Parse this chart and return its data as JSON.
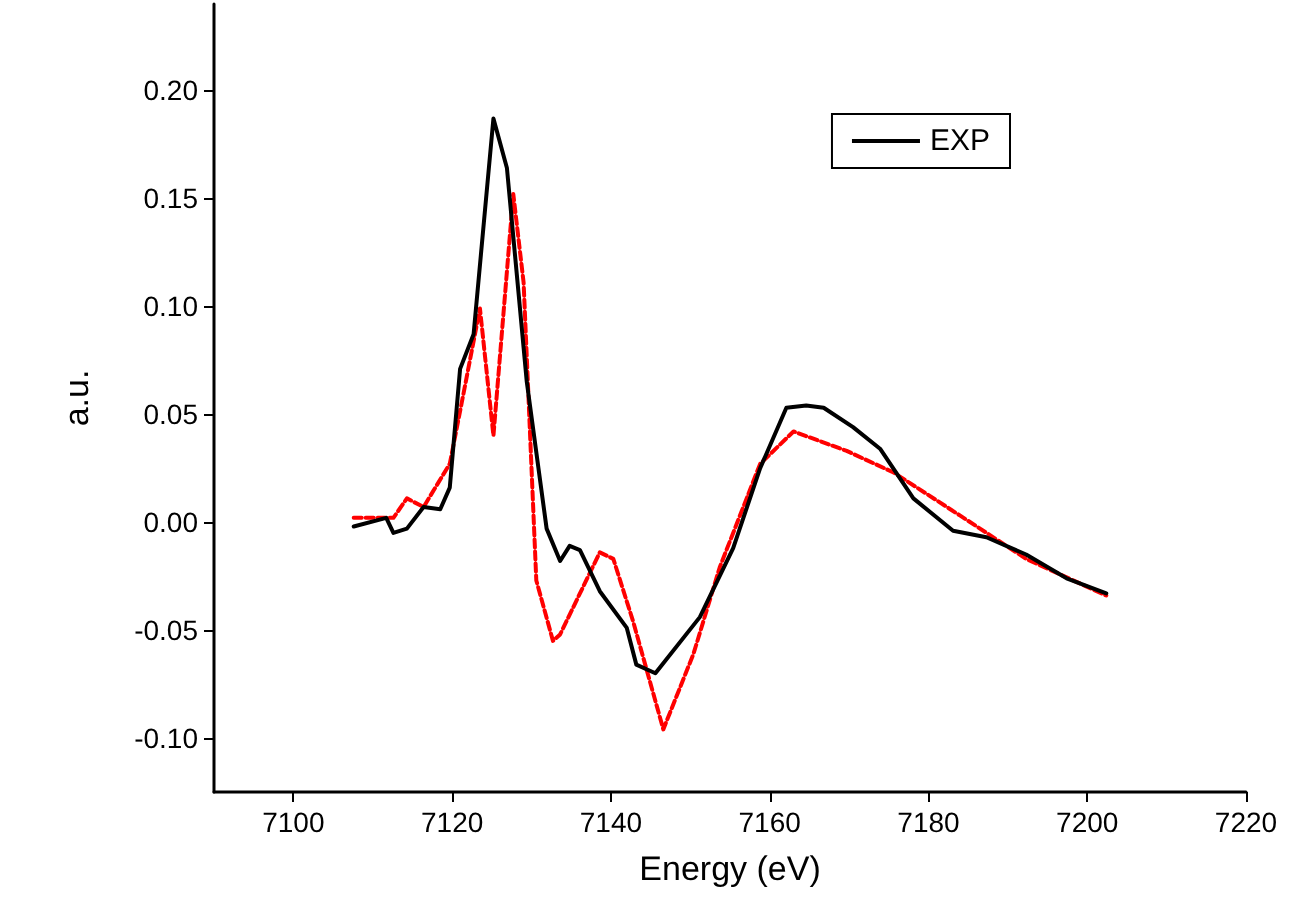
{
  "chart_data": {
    "type": "line",
    "xlabel": "Energy (eV)",
    "ylabel": "a.u.",
    "xlim": [
      7090,
      7220
    ],
    "xticks": [
      7100,
      7120,
      7140,
      7160,
      7180,
      7200,
      7220
    ],
    "ylim": [
      -0.125,
      0.24
    ],
    "yticks": [
      {
        "value": -0.1,
        "label": "-0.10"
      },
      {
        "value": -0.05,
        "label": "-0.05"
      },
      {
        "value": 0,
        "label": "0.00"
      },
      {
        "value": 0.05,
        "label": "0.05"
      },
      {
        "value": 0.1,
        "label": "0.10"
      },
      {
        "value": 0.15,
        "label": "0.15"
      },
      {
        "value": 0.2,
        "label": "0.20"
      }
    ],
    "grid": false,
    "legend": "top right",
    "marker": "none",
    "series": [
      {
        "name": "EXP",
        "color": "#000000",
        "line_style": "solid",
        "x": [
          7107.6,
          7111.7,
          7112.6,
          7114.3,
          7116.4,
          7118.5,
          7119.7,
          7121,
          7122.7,
          7125.2,
          7126.9,
          7129.4,
          7131.9,
          7133.6,
          7134.8,
          7136.1,
          7138.6,
          7142,
          7143.2,
          7145.6,
          7151.2,
          7155.4,
          7158.8,
          7162.1,
          7164.6,
          7166.8,
          7170.5,
          7173.9,
          7178.1,
          7183.1,
          7187.3,
          7192.3,
          7197.4,
          7202.4
        ],
        "values": [
          -0.002,
          0.002,
          -0.005,
          -0.003,
          0.007,
          0.006,
          0.016,
          0.071,
          0.087,
          0.187,
          0.164,
          0.065,
          -0.003,
          -0.018,
          -0.011,
          -0.013,
          -0.032,
          -0.049,
          -0.066,
          -0.07,
          -0.044,
          -0.012,
          0.025,
          0.053,
          0.054,
          0.053,
          0.044,
          0.034,
          0.011,
          -0.004,
          -0.007,
          -0.015,
          -0.026,
          -0.033
        ]
      },
      {
        "color": "#ff0000",
        "line_style": "dashed",
        "x": [
          7107.6,
          7112.6,
          7114.3,
          7116.4,
          7119.7,
          7121.4,
          7123.5,
          7125.2,
          7127.7,
          7129,
          7130.6,
          7132.7,
          7133.6,
          7138.6,
          7140.3,
          7142.8,
          7146.6,
          7150.4,
          7153.7,
          7158.8,
          7163,
          7169.7,
          7175.6,
          7184,
          7192.3,
          7202.4
        ],
        "values": [
          0.002,
          0.002,
          0.011,
          0.007,
          0.027,
          0.059,
          0.099,
          0.04,
          0.152,
          0.111,
          -0.027,
          -0.055,
          -0.052,
          -0.014,
          -0.017,
          -0.046,
          -0.096,
          -0.061,
          -0.021,
          0.027,
          0.042,
          0.033,
          0.023,
          0.003,
          -0.017,
          -0.034
        ]
      }
    ]
  }
}
